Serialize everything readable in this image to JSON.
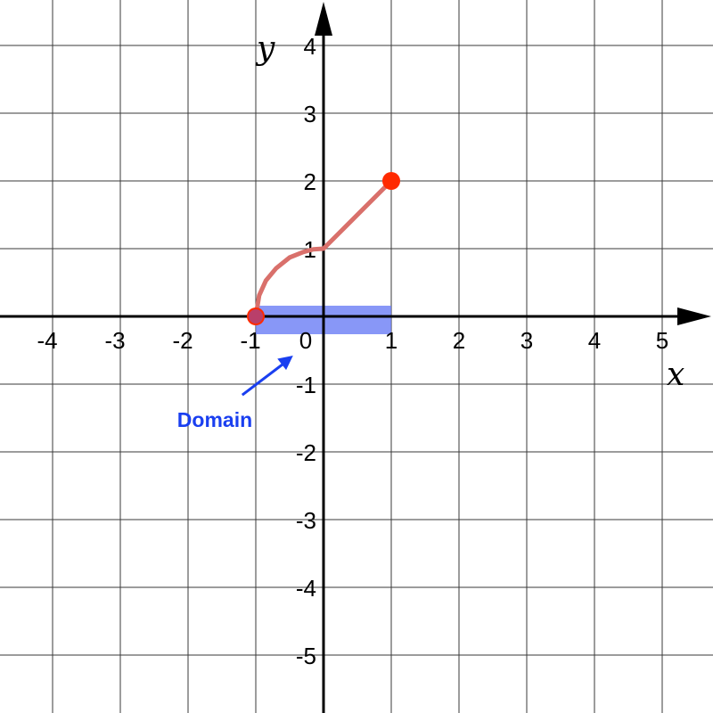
{
  "chart_data": {
    "type": "line",
    "title": "",
    "xlabel": "x",
    "ylabel": "y",
    "xlim": [
      -4.8,
      5.8
    ],
    "ylim": [
      -5.8,
      4.6
    ],
    "grid": true,
    "x_ticks": [
      -4,
      -3,
      -2,
      -1,
      0,
      1,
      2,
      3,
      4,
      5
    ],
    "y_ticks": [
      -5,
      -4,
      -3,
      -2,
      -1,
      1,
      2,
      3,
      4
    ],
    "series": [
      {
        "color": "#d9706b",
        "points": [
          [
            -1,
            0
          ],
          [
            -0.95,
            0.31
          ],
          [
            -0.85,
            0.53
          ],
          [
            -0.7,
            0.71
          ],
          [
            -0.5,
            0.87
          ],
          [
            -0.3,
            0.95
          ],
          [
            -0.15,
            0.99
          ],
          [
            0,
            1
          ],
          [
            1,
            2
          ]
        ]
      }
    ],
    "endpoints": [
      {
        "x": -1,
        "y": 0,
        "color": "#ff2a00"
      },
      {
        "x": 1,
        "y": 2,
        "color": "#ff2a00"
      }
    ],
    "domain_interval": {
      "from": -1,
      "to": 1,
      "color": "#6a7df5"
    },
    "annotation": {
      "text": "Domain",
      "color": "#1a3ff0",
      "x": -1.7,
      "y": -1.45,
      "arrow_to": [
        -0.45,
        -0.5
      ]
    }
  }
}
